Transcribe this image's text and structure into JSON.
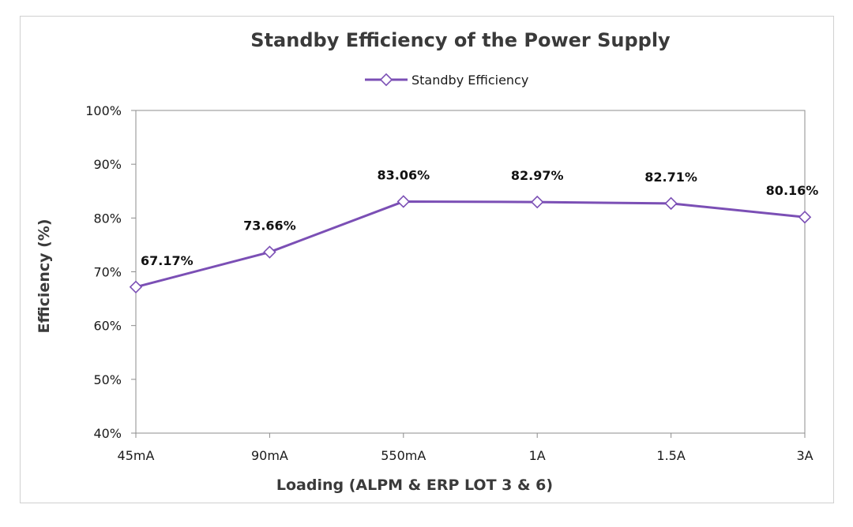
{
  "chart_data": {
    "type": "line",
    "title": "Standby Efficiency of the Power Supply",
    "xlabel": "Loading (ALPM & ERP LOT 3 & 6)",
    "ylabel": "Efficiency (%)",
    "categories": [
      "45mA",
      "90mA",
      "550mA",
      "1A",
      "1.5A",
      "3A"
    ],
    "series": [
      {
        "name": "Standby Efficiency",
        "values": [
          67.17,
          73.66,
          83.06,
          82.97,
          82.71,
          80.16
        ],
        "data_labels": [
          "67.17%",
          "73.66%",
          "83.06%",
          "82.97%",
          "82.71%",
          "80.16%"
        ],
        "color": "#7b4fb5",
        "marker": "diamond-open"
      }
    ],
    "ylim": [
      40,
      100
    ],
    "y_ticks": [
      40,
      50,
      60,
      70,
      80,
      90,
      100
    ],
    "y_tick_labels": [
      "40%",
      "50%",
      "60%",
      "70%",
      "80%",
      "90%",
      "100%"
    ],
    "grid": false,
    "legend_position": "top-center"
  }
}
